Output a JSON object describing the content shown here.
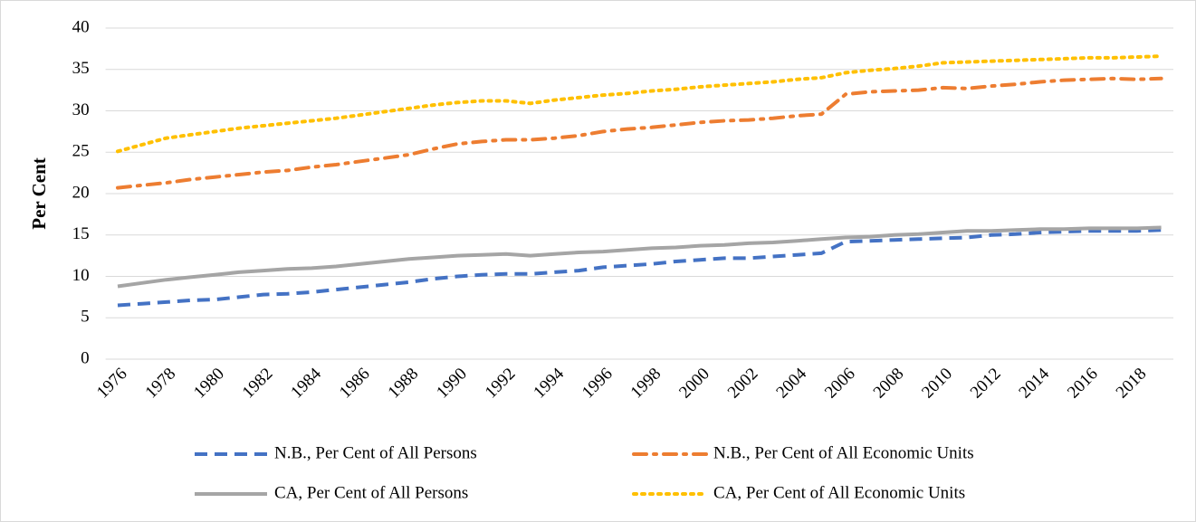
{
  "chart_data": {
    "type": "line",
    "ylabel": "Per Cent",
    "categories": [
      "1976",
      null,
      "1978",
      null,
      "1980",
      null,
      "1982",
      null,
      "1984",
      null,
      "1986",
      null,
      "1988",
      null,
      "1990",
      null,
      "1992",
      null,
      "1994",
      null,
      "1996",
      null,
      "1998",
      null,
      "2000",
      null,
      "2002",
      null,
      "2004",
      null,
      "2006",
      null,
      "2008",
      null,
      "2010",
      null,
      "2012",
      null,
      "2014",
      null,
      "2016",
      null,
      "2018",
      null
    ],
    "series": [
      {
        "name": "N.B., Per Cent of All Persons",
        "color": "#4472c4",
        "style": "dash",
        "values": [
          6.5,
          6.7,
          6.9,
          7.1,
          7.2,
          7.5,
          7.8,
          7.9,
          8.1,
          8.4,
          8.7,
          9.0,
          9.3,
          9.7,
          10.0,
          10.2,
          10.3,
          10.3,
          10.5,
          10.7,
          11.1,
          11.3,
          11.5,
          11.8,
          12.0,
          12.2,
          12.2,
          12.4,
          12.6,
          12.8,
          14.2,
          14.3,
          14.4,
          14.5,
          14.6,
          14.7,
          15.0,
          15.1,
          15.3,
          15.4,
          15.5,
          15.5,
          15.5,
          15.6
        ]
      },
      {
        "name": "N.B., Per Cent of All Economic Units",
        "color": "#ed7d31",
        "style": "dashdot",
        "values": [
          20.7,
          21.0,
          21.3,
          21.7,
          22.0,
          22.3,
          22.6,
          22.8,
          23.2,
          23.5,
          23.9,
          24.3,
          24.7,
          25.4,
          26.0,
          26.3,
          26.5,
          26.5,
          26.7,
          27.0,
          27.5,
          27.8,
          28.0,
          28.3,
          28.6,
          28.8,
          28.9,
          29.1,
          29.4,
          29.6,
          32.0,
          32.3,
          32.4,
          32.5,
          32.8,
          32.7,
          33.0,
          33.2,
          33.5,
          33.7,
          33.8,
          33.9,
          33.8,
          33.9
        ]
      },
      {
        "name": "CA, Per Cent of All Persons",
        "color": "#a5a5a5",
        "style": "solid",
        "values": [
          8.8,
          9.2,
          9.6,
          9.9,
          10.2,
          10.5,
          10.7,
          10.9,
          11.0,
          11.2,
          11.5,
          11.8,
          12.1,
          12.3,
          12.5,
          12.6,
          12.7,
          12.5,
          12.7,
          12.9,
          13.0,
          13.2,
          13.4,
          13.5,
          13.7,
          13.8,
          14.0,
          14.1,
          14.3,
          14.5,
          14.7,
          14.8,
          15.0,
          15.1,
          15.3,
          15.5,
          15.5,
          15.6,
          15.7,
          15.7,
          15.8,
          15.8,
          15.8,
          15.9
        ]
      },
      {
        "name": "CA, Per Cent of All Economic Units",
        "color": "#ffc000",
        "style": "dot",
        "values": [
          25.1,
          25.9,
          26.7,
          27.1,
          27.5,
          27.9,
          28.2,
          28.5,
          28.8,
          29.1,
          29.5,
          29.9,
          30.3,
          30.7,
          31.0,
          31.2,
          31.2,
          30.9,
          31.3,
          31.6,
          31.9,
          32.1,
          32.4,
          32.6,
          32.9,
          33.1,
          33.3,
          33.5,
          33.8,
          34.0,
          34.6,
          34.9,
          35.1,
          35.4,
          35.8,
          35.9,
          36.0,
          36.1,
          36.2,
          36.3,
          36.4,
          36.4,
          36.5,
          36.6
        ]
      }
    ],
    "ylim": [
      0,
      40
    ],
    "yticks": [
      0,
      5,
      10,
      15,
      20,
      25,
      30,
      35,
      40
    ],
    "grid": true,
    "legend": "bottom"
  }
}
